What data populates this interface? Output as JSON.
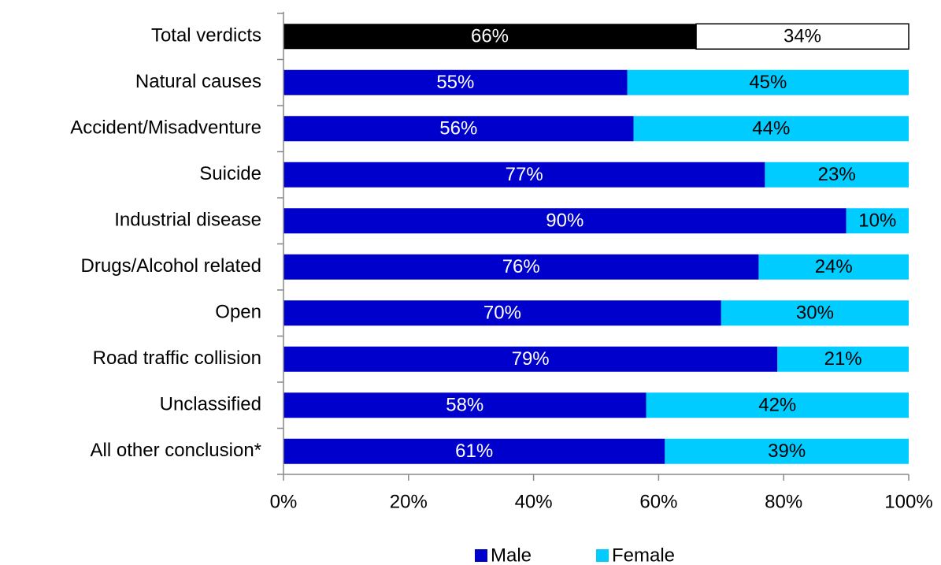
{
  "chart_data": {
    "type": "stacked_bar_horizontal",
    "categories": [
      "Total verdicts",
      "Natural causes",
      "Accident/Misadventure",
      "Suicide",
      "Industrial disease",
      "Drugs/Alcohol related",
      "Open",
      "Road traffic collision",
      "Unclassified",
      "All other conclusion*"
    ],
    "series": [
      {
        "name": "Male",
        "color": "#0000cc",
        "colors": [
          "#000000",
          "#0000cc",
          "#0000cc",
          "#0000cc",
          "#0000cc",
          "#0000cc",
          "#0000cc",
          "#0000cc",
          "#0000cc",
          "#0000cc"
        ],
        "values": [
          66,
          55,
          56,
          77,
          90,
          76,
          70,
          79,
          58,
          61
        ],
        "value_labels": [
          "66%",
          "55%",
          "56%",
          "77%",
          "90%",
          "76%",
          "70%",
          "79%",
          "58%",
          "61%"
        ]
      },
      {
        "name": "Female",
        "color": "#00ccff",
        "colors": [
          "#ffffff",
          "#00ccff",
          "#00ccff",
          "#00ccff",
          "#00ccff",
          "#00ccff",
          "#00ccff",
          "#00ccff",
          "#00ccff",
          "#00ccff"
        ],
        "values": [
          34,
          45,
          44,
          23,
          10,
          24,
          30,
          21,
          42,
          39
        ],
        "value_labels": [
          "34%",
          "45%",
          "44%",
          "23%",
          "10%",
          "24%",
          "30%",
          "21%",
          "42%",
          "39%"
        ]
      }
    ],
    "xlim": [
      0,
      100
    ],
    "xticks": [
      {
        "value": 0,
        "label": "0%"
      },
      {
        "value": 20,
        "label": "20%"
      },
      {
        "value": 40,
        "label": "40%"
      },
      {
        "value": 60,
        "label": "60%"
      },
      {
        "value": 80,
        "label": "80%"
      },
      {
        "value": 100,
        "label": "100%"
      }
    ],
    "legend": "bottom"
  }
}
